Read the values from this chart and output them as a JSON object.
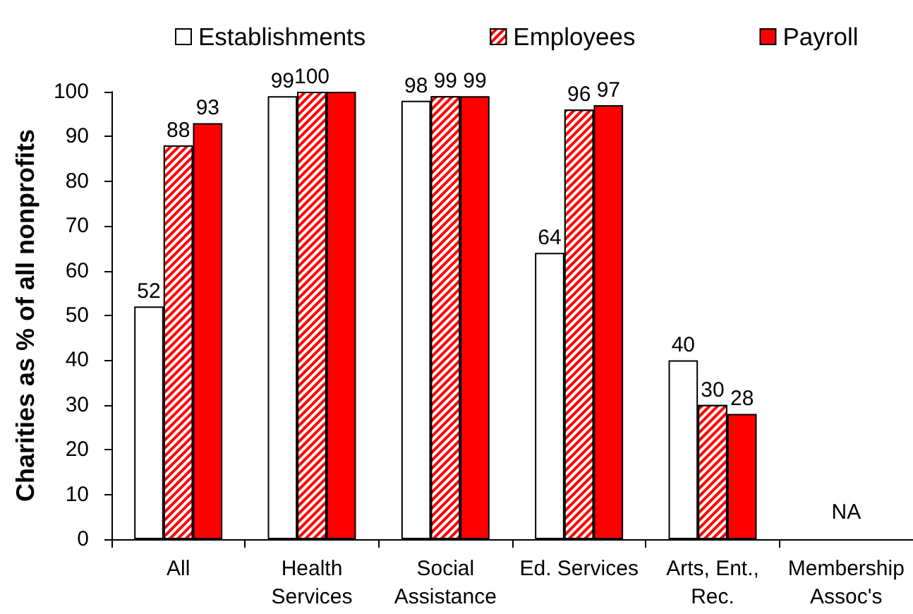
{
  "chart_data": {
    "type": "bar",
    "ylabel": "Charities as % of all nonprofits",
    "categories": [
      "All",
      "Health\nServices",
      "Social\nAssistance",
      "Ed. Services",
      "Arts, Ent.,\nRec.",
      "Membership\nAssoc's"
    ],
    "series": [
      {
        "name": "Establishments",
        "color": "#ffffff",
        "values": [
          52,
          99,
          98,
          64,
          40,
          null
        ],
        "value_labels": [
          "52",
          "99",
          "98",
          "64",
          "40",
          null
        ]
      },
      {
        "name": "Employees",
        "color": "#ff0000",
        "values": [
          88,
          100,
          99,
          96,
          30,
          null
        ],
        "value_labels": [
          "88",
          "100",
          "99",
          "96",
          "30",
          null
        ]
      },
      {
        "name": "Payroll",
        "color": "#ff0000",
        "values": [
          93,
          100,
          99,
          97,
          28,
          null
        ],
        "value_labels": [
          "93",
          null,
          "99",
          "97",
          "28",
          null
        ]
      }
    ],
    "ylim": [
      0,
      100
    ],
    "yticks": [
      0,
      10,
      20,
      30,
      40,
      50,
      60,
      70,
      80,
      90,
      100
    ],
    "legend": "top",
    "annotations": [
      "NA"
    ]
  }
}
